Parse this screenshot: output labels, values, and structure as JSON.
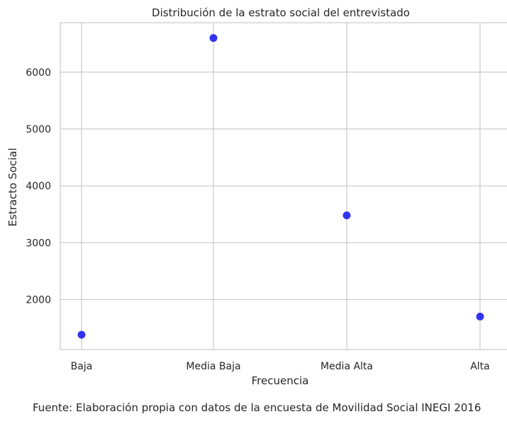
{
  "chart_data": {
    "type": "scatter",
    "title": "Distribución de la estrato social del entrevistado",
    "xlabel": "Frecuencia",
    "ylabel": "Estracto Social",
    "categories": [
      "Baja",
      "Media Baja",
      "Media Alta",
      "Alta"
    ],
    "values": [
      1380,
      6600,
      3480,
      1700
    ],
    "yticks": [
      2000,
      3000,
      4000,
      5000,
      6000
    ],
    "ylim": [
      1120,
      6870
    ],
    "grid": true,
    "point_color": "#1f1ff0"
  },
  "caption": "Fuente: Elaboración propia con datos de la encuesta de Movilidad Social INEGI 2016"
}
